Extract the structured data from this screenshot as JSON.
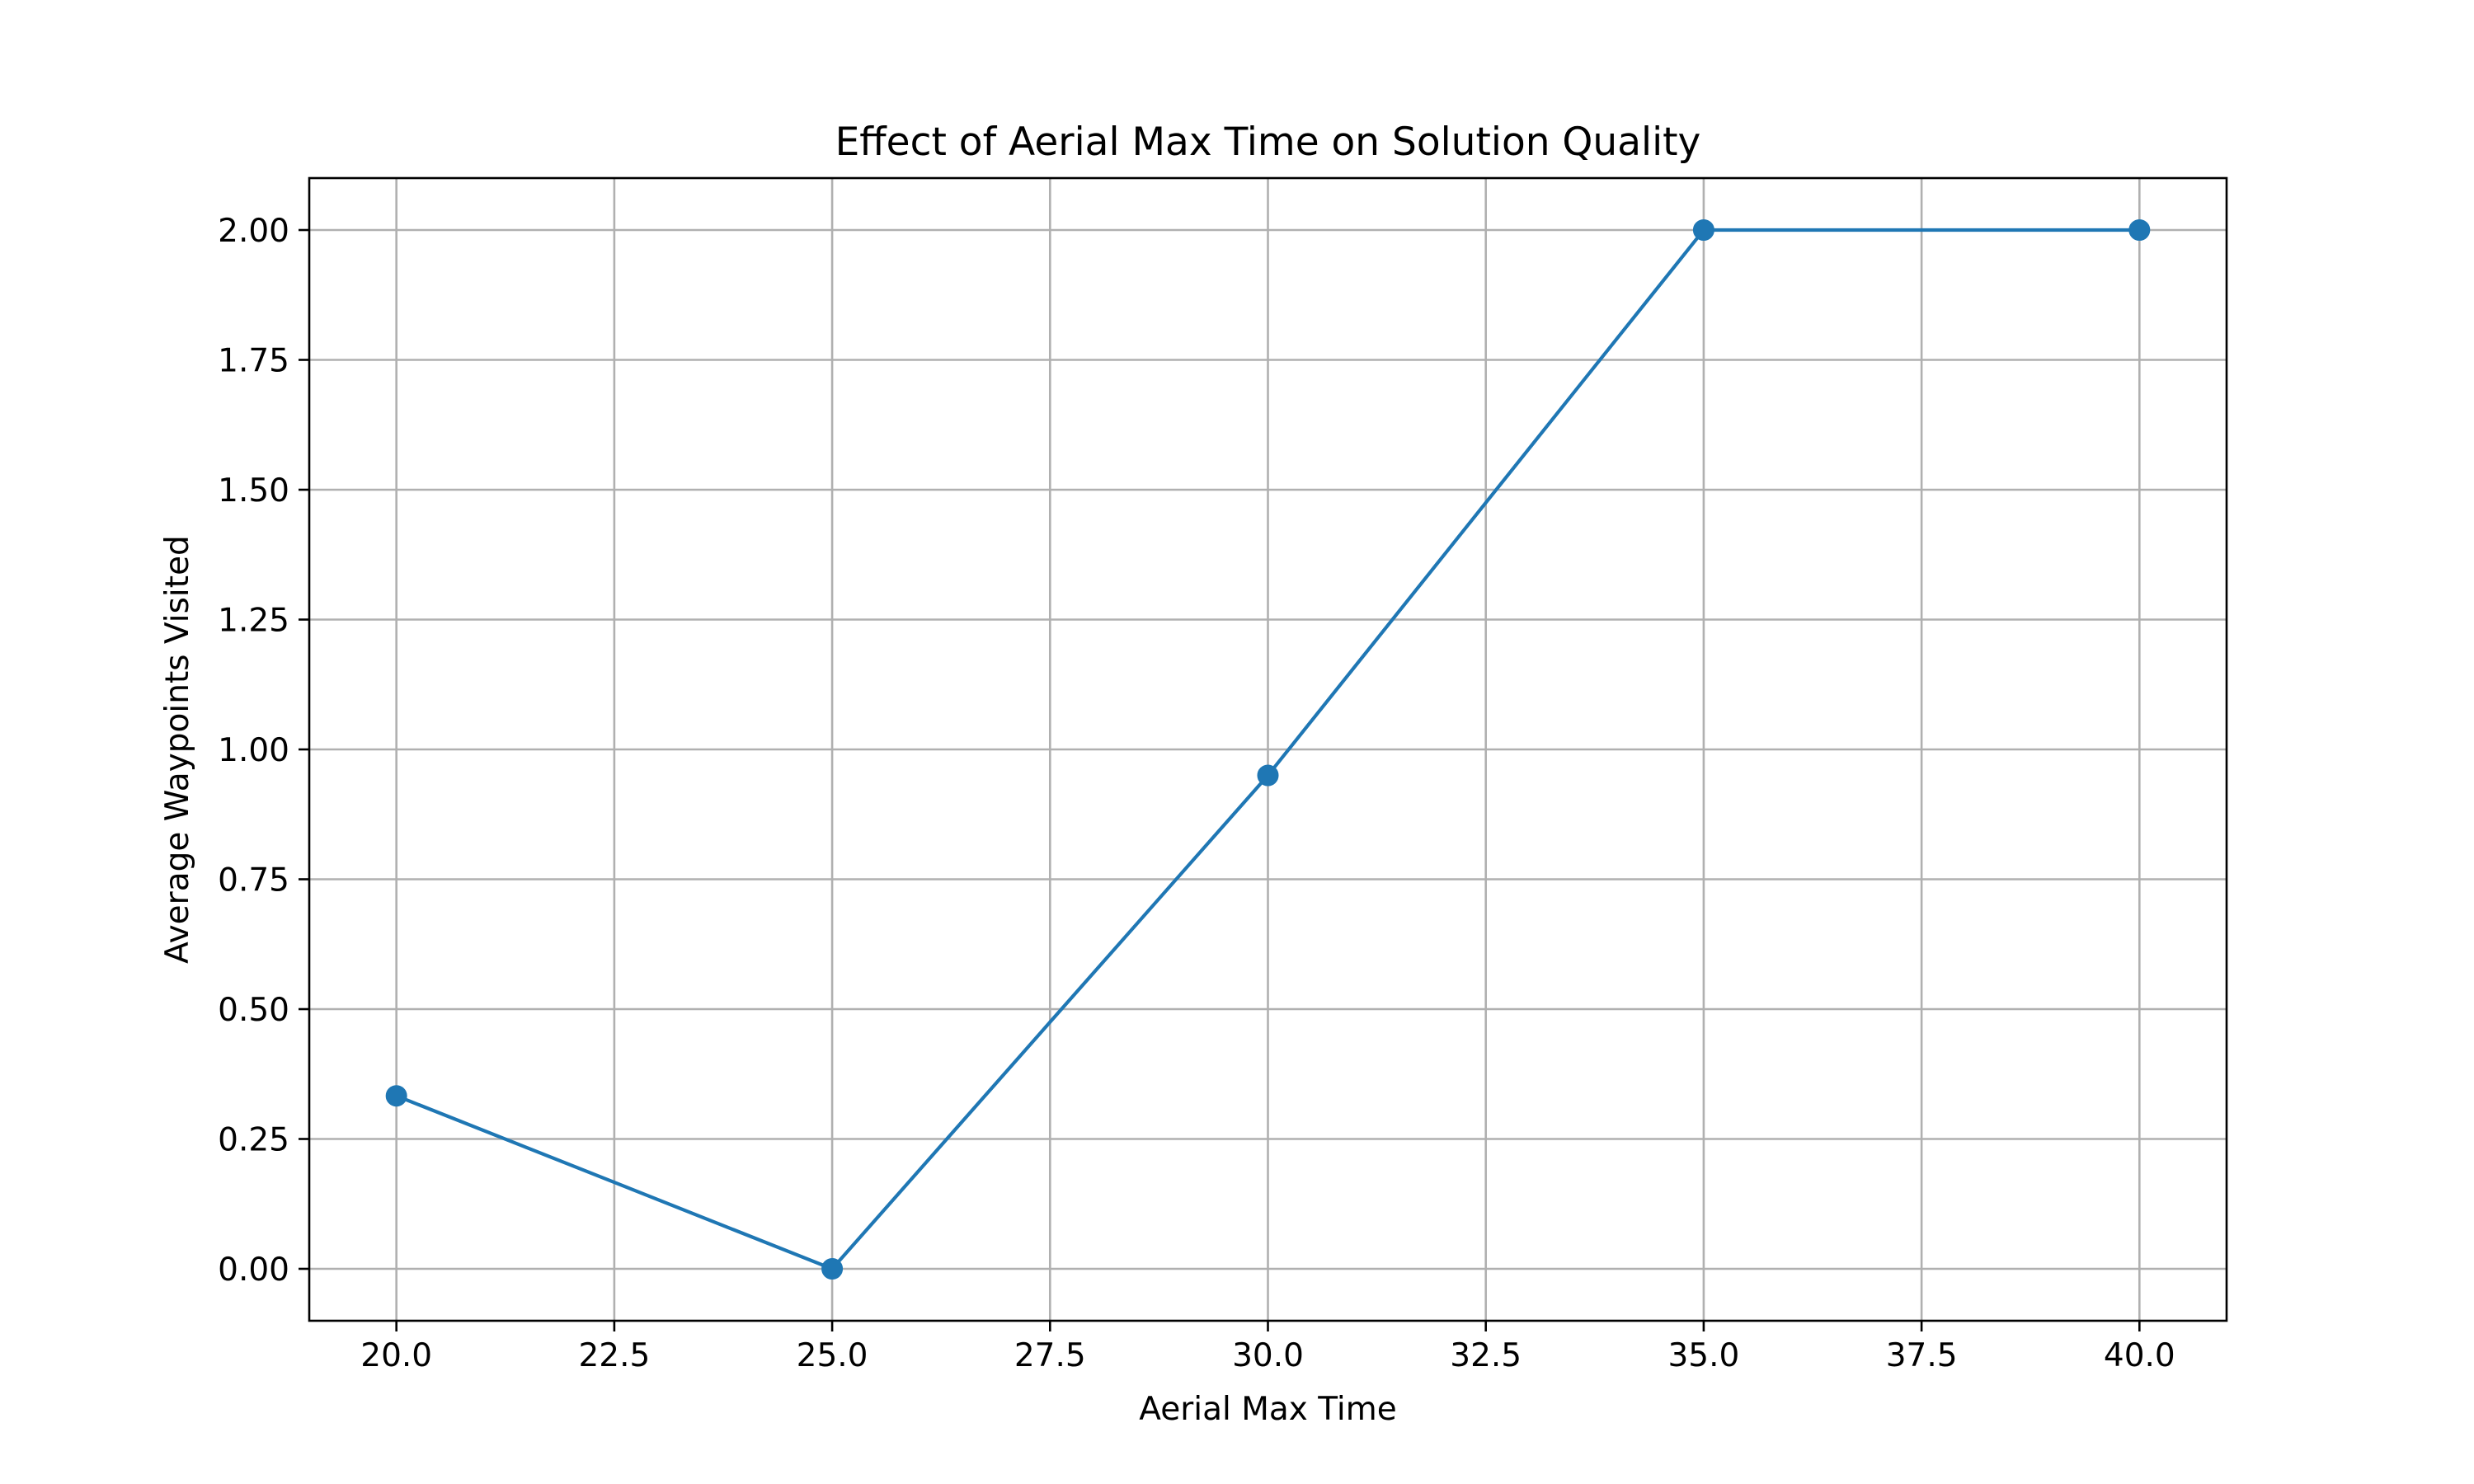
{
  "chart_data": {
    "type": "line",
    "title": "Effect of Aerial Max Time on Solution Quality",
    "xlabel": "Aerial Max Time",
    "ylabel": "Average Waypoints Visited",
    "xlim": [
      19,
      41
    ],
    "ylim": [
      -0.1,
      2.1
    ],
    "grid": true,
    "x_ticks": [
      "20.0",
      "22.5",
      "25.0",
      "27.5",
      "30.0",
      "32.5",
      "35.0",
      "37.5",
      "40.0"
    ],
    "y_ticks": [
      "0.00",
      "0.25",
      "0.50",
      "0.75",
      "1.00",
      "1.25",
      "1.50",
      "1.75",
      "2.00"
    ],
    "series": [
      {
        "x": [
          20,
          25,
          30,
          35,
          40
        ],
        "y": [
          0.333,
          0.0,
          0.95,
          2.0,
          2.0
        ],
        "color": "#1f77b4",
        "marker": "circle"
      }
    ]
  }
}
